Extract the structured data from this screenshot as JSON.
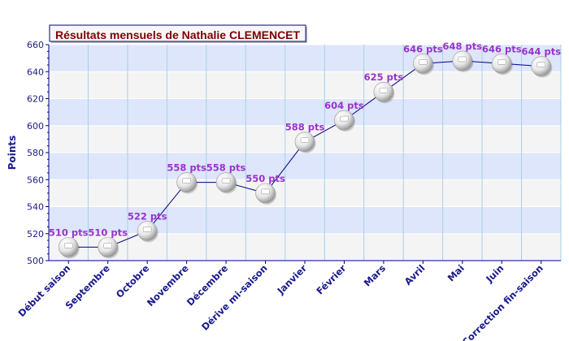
{
  "chart_data": {
    "type": "line",
    "title": "Résultats mensuels de Nathalie CLEMENCET",
    "ylabel": "Points",
    "xlabel": "",
    "ylim": [
      500,
      660
    ],
    "yticks": [
      500,
      520,
      540,
      560,
      580,
      600,
      620,
      640,
      660
    ],
    "categories": [
      "Début saison",
      "Septembre",
      "Octobre",
      "Novembre",
      "Décembre",
      "Dérive mi-saison",
      "Janvier",
      "Février",
      "Mars",
      "Avril",
      "Mai",
      "Juin",
      "Correction fin-saison"
    ],
    "series": [
      {
        "values": [
          510,
          510,
          522,
          558,
          558,
          550,
          588,
          604,
          625,
          646,
          648,
          646,
          644
        ],
        "labels": [
          "510 pts",
          "510 pts",
          "522 pts",
          "558 pts",
          "558 pts",
          "550 pts",
          "588 pts",
          "604 pts",
          "625 pts",
          "646 pts",
          "648 pts",
          "646 pts",
          "644 pts"
        ]
      }
    ],
    "grid": true,
    "legend": "none",
    "colors": {
      "line": "#000080",
      "axis": "#000080",
      "tick_label": "#1a1a8c",
      "data_label": "#9933cc",
      "band_blue": "#dde6fb",
      "band_grey": "#f4f4f4",
      "vgrid": "#a9cfe6",
      "title_text": "#800000",
      "title_border": "#000080",
      "title_bg": "#f7f7f7"
    }
  }
}
